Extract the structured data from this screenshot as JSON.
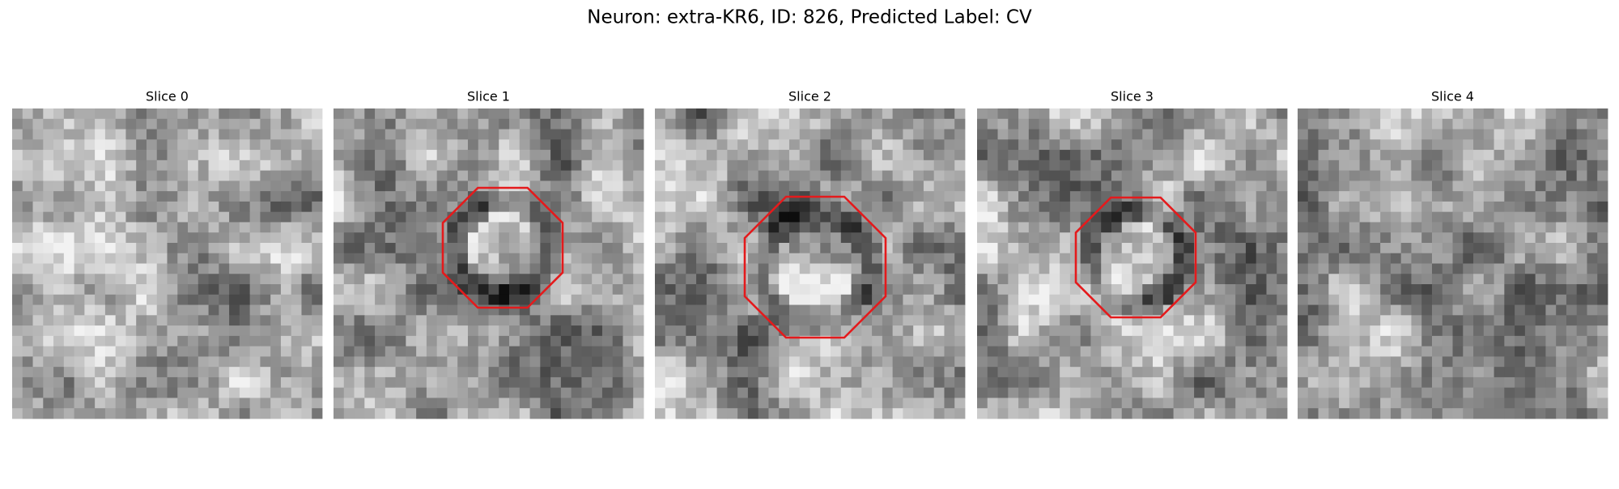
{
  "title": "Neuron: extra-KR6, ID: 826, Predicted Label: CV",
  "panels": [
    {
      "label": "Slice 0"
    },
    {
      "label": "Slice 1"
    },
    {
      "label": "Slice 2"
    },
    {
      "label": "Slice 3"
    },
    {
      "label": "Slice 4"
    }
  ]
}
